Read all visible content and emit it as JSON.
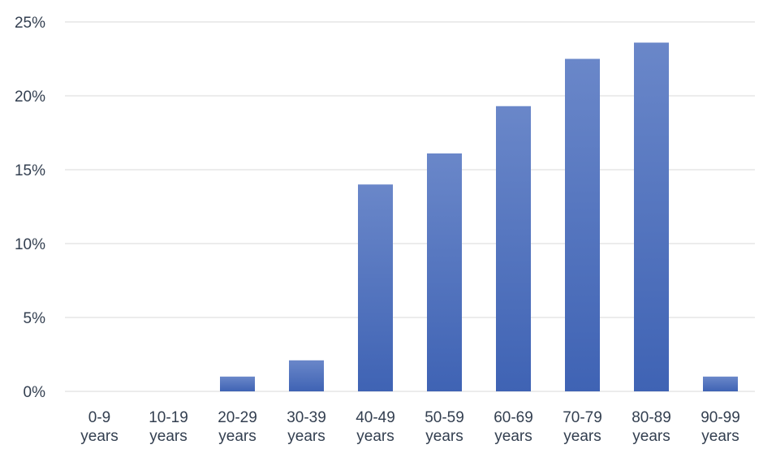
{
  "chart_data": {
    "type": "bar",
    "title": "",
    "xlabel": "",
    "ylabel": "",
    "categories": [
      [
        "0-9",
        "years"
      ],
      [
        "10-19",
        "years"
      ],
      [
        "20-29",
        "years"
      ],
      [
        "30-39",
        "years"
      ],
      [
        "40-49",
        "years"
      ],
      [
        "50-59",
        "years"
      ],
      [
        "60-69",
        "years"
      ],
      [
        "70-79",
        "years"
      ],
      [
        "80-89",
        "years"
      ],
      [
        "90-99",
        "years"
      ]
    ],
    "values": [
      0,
      0,
      1,
      2.1,
      14,
      16.1,
      19.3,
      22.5,
      23.6,
      1
    ],
    "ylim": [
      0,
      25
    ],
    "yticks": [
      0,
      5,
      10,
      15,
      20,
      25
    ],
    "ytick_labels": [
      "0%",
      "5%",
      "10%",
      "15%",
      "20%",
      "25%"
    ],
    "grid": true,
    "legend": "none",
    "colors": {
      "bar_top": "#6a87c9",
      "bar_bottom": "#3f63b4",
      "grid": "#d9d9d9",
      "text": "#333f50"
    }
  }
}
